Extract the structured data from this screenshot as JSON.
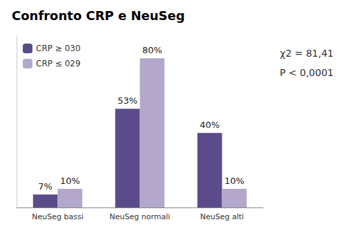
{
  "chart_data": {
    "type": "bar",
    "title": "Confronto CRP e NeuSeg",
    "categories": [
      "NeuSeg bassi",
      "NeuSeg normali",
      "NeuSeg alti"
    ],
    "series": [
      {
        "name": "CRP ≥ 030",
        "color": "#5b4b8a",
        "values": [
          7,
          53,
          40
        ],
        "value_labels": [
          "7%",
          "53%",
          "40%"
        ]
      },
      {
        "name": "CRP ≤ 029",
        "color": "#b3a8cc",
        "values": [
          10,
          80,
          10
        ],
        "value_labels": [
          "10%",
          "80%",
          "10%"
        ]
      }
    ],
    "annotations": [
      "χ2 = 81,41",
      "P < 0,0001"
    ],
    "ylim": [
      0,
      92
    ],
    "tick_labels": "x",
    "grid": false,
    "legend": "upper left",
    "data_labels": true
  }
}
